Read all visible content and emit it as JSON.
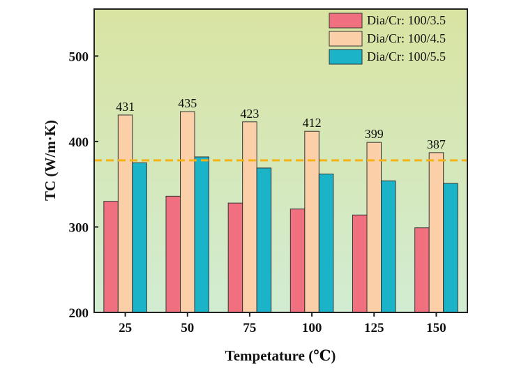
{
  "chart_data": {
    "type": "bar",
    "title": "",
    "xlabel": "Tempetature (℃)",
    "ylabel": "TC (W/m·K)",
    "categories": [
      "25",
      "50",
      "75",
      "100",
      "125",
      "150"
    ],
    "ylim": [
      200,
      555
    ],
    "yticks": [
      200,
      300,
      400,
      500
    ],
    "series": [
      {
        "name": "Dia/Cr: 100/3.5",
        "color": "#f07080",
        "values": [
          330,
          336,
          328,
          321,
          314,
          299
        ]
      },
      {
        "name": "Dia/Cr: 100/4.5",
        "color": "#fbd0a8",
        "values": [
          431,
          435,
          423,
          412,
          399,
          387
        ]
      },
      {
        "name": "Dia/Cr: 100/5.5",
        "color": "#1ab3c8",
        "values": [
          375,
          382,
          369,
          362,
          354,
          351
        ]
      }
    ],
    "data_labels": {
      "series": "Dia/Cr: 100/4.5",
      "texts": [
        "431",
        "435",
        "423",
        "412",
        "399",
        "387"
      ]
    },
    "reference_line": {
      "value": 378,
      "color": "#f5b212",
      "style": "dashed"
    },
    "background_gradient": {
      "top": "#d9e4a2",
      "bottom": "#d2ecd2"
    },
    "legend": {
      "position": "top-right"
    },
    "grid": false
  }
}
